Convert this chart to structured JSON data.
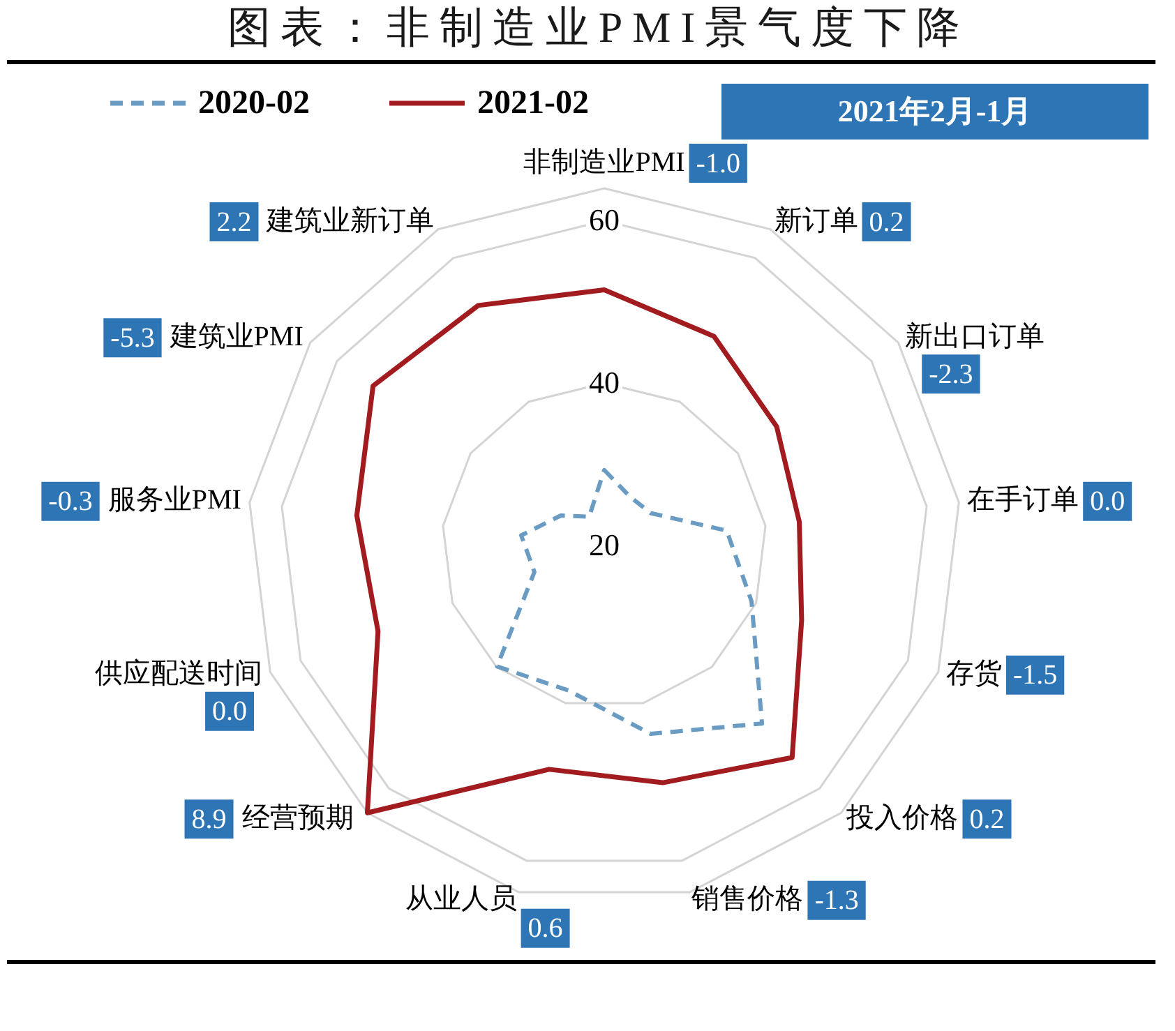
{
  "chart_data": {
    "type": "radar",
    "title": "图表：非制造业PMI景气度下降",
    "categories": [
      "非制造业PMI",
      "新订单",
      "新出口订单",
      "在手订单",
      "存货",
      "投入价格",
      "销售价格",
      "从业人员",
      "经营预期",
      "供应配送时间",
      "服务业PMI",
      "建筑业PMI",
      "建筑业新订单"
    ],
    "series": [
      {
        "name": "2020-02",
        "color": "#6a9bc3",
        "line_style": "dashed",
        "values": [
          29.3,
          26.8,
          27.0,
          35.2,
          39.4,
          49.3,
          43.9,
          38.4,
          39.9,
          29.2,
          30.3,
          26.5,
          24.0
        ]
      },
      {
        "name": "2021-02",
        "color": "#a11b1f",
        "line_style": "solid",
        "values": [
          51.5,
          49.1,
          45.8,
          44.2,
          46.0,
          54.9,
          50.1,
          48.4,
          64.0,
          49.8,
          50.7,
          54.6,
          53.4
        ]
      }
    ],
    "ylim": [
      20,
      64
    ],
    "yticks": [
      20,
      40,
      60
    ],
    "grid": true,
    "legend": "top left",
    "marker": "none",
    "annotations": [
      "2021年2月-1月",
      {
        "text": "-1.0",
        "x": "非制造业PMI"
      },
      {
        "text": "0.2",
        "x": "新订单"
      },
      {
        "text": "-2.3",
        "x": "新出口订单"
      },
      {
        "text": "0.0",
        "x": "在手订单"
      },
      {
        "text": "-1.5",
        "x": "存货"
      },
      {
        "text": "0.2",
        "x": "投入价格"
      },
      {
        "text": "-1.3",
        "x": "销售价格"
      },
      {
        "text": "0.6",
        "x": "从业人员"
      },
      {
        "text": "8.9",
        "x": "经营预期"
      },
      {
        "text": "0.0",
        "x": "供应配送时间"
      },
      {
        "text": "-0.3",
        "x": "服务业PMI"
      },
      {
        "text": "-5.3",
        "x": "建筑业PMI"
      },
      {
        "text": "2.2",
        "x": "建筑业新订单"
      }
    ]
  }
}
